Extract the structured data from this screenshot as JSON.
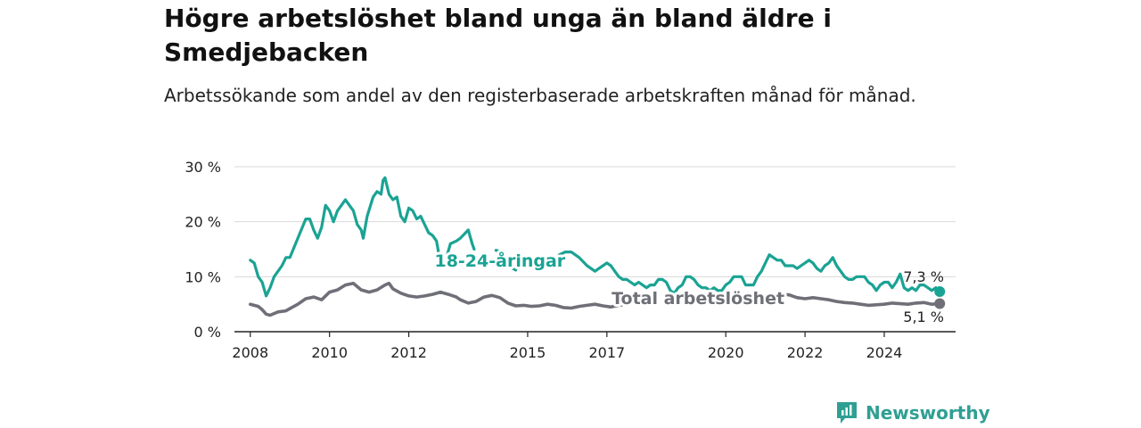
{
  "title": "Högre arbetslöshet bland unga än bland äldre i Smedjebacken",
  "subtitle": "Arbetssökande som andel av den registerbaserade arbetskraften månad för månad.",
  "brand": "Newsworthy",
  "colors": {
    "youth": "#1aa394",
    "total": "#6f6f78",
    "brand": "#2f9f93"
  },
  "chart_data": {
    "type": "line",
    "xlim": [
      2007.6,
      2025.8
    ],
    "ylim": [
      0,
      30
    ],
    "y_ticks": [
      0,
      10,
      20,
      30
    ],
    "y_tick_labels": [
      "0 %",
      "10 %",
      "20 %",
      "30 %"
    ],
    "x_ticks": [
      2008,
      2010,
      2012,
      2015,
      2017,
      2020,
      2022,
      2024
    ],
    "x_tick_labels": [
      "2008",
      "2010",
      "2012",
      "2015",
      "2017",
      "2020",
      "2022",
      "2024"
    ],
    "grid": true,
    "series": [
      {
        "name": "18-24-åringar",
        "key": "youth",
        "end_label": "7,3 %",
        "points": [
          [
            2008.0,
            13.0
          ],
          [
            2008.1,
            12.5
          ],
          [
            2008.2,
            10.0
          ],
          [
            2008.3,
            9.0
          ],
          [
            2008.4,
            6.5
          ],
          [
            2008.5,
            8.0
          ],
          [
            2008.6,
            10.0
          ],
          [
            2008.8,
            12.0
          ],
          [
            2008.9,
            13.5
          ],
          [
            2009.0,
            13.5
          ],
          [
            2009.2,
            17.0
          ],
          [
            2009.4,
            20.5
          ],
          [
            2009.5,
            20.5
          ],
          [
            2009.6,
            18.5
          ],
          [
            2009.7,
            17.0
          ],
          [
            2009.8,
            19.0
          ],
          [
            2009.9,
            23.0
          ],
          [
            2010.0,
            22.0
          ],
          [
            2010.1,
            20.0
          ],
          [
            2010.2,
            22.0
          ],
          [
            2010.4,
            24.0
          ],
          [
            2010.5,
            23.0
          ],
          [
            2010.6,
            22.0
          ],
          [
            2010.7,
            19.5
          ],
          [
            2010.8,
            18.5
          ],
          [
            2010.85,
            17.0
          ],
          [
            2010.95,
            21.0
          ],
          [
            2011.1,
            24.5
          ],
          [
            2011.2,
            25.5
          ],
          [
            2011.3,
            25.0
          ],
          [
            2011.35,
            27.5
          ],
          [
            2011.4,
            28.0
          ],
          [
            2011.5,
            25.0
          ],
          [
            2011.6,
            24.0
          ],
          [
            2011.7,
            24.5
          ],
          [
            2011.8,
            21.0
          ],
          [
            2011.9,
            20.0
          ],
          [
            2012.0,
            22.5
          ],
          [
            2012.1,
            22.0
          ],
          [
            2012.2,
            20.5
          ],
          [
            2012.3,
            21.0
          ],
          [
            2012.4,
            19.5
          ],
          [
            2012.5,
            18.0
          ],
          [
            2012.6,
            17.5
          ],
          [
            2012.7,
            16.5
          ],
          [
            2012.75,
            14.5
          ]
        ],
        "points_2": [
          [
            2012.95,
            13.5
          ],
          [
            2013.05,
            16.0
          ],
          [
            2013.2,
            16.5
          ],
          [
            2013.3,
            17.0
          ],
          [
            2013.5,
            18.5
          ],
          [
            2013.6,
            16.0
          ],
          [
            2013.65,
            15.0
          ]
        ],
        "points_3": [
          [
            2015.2,
            12.5
          ],
          [
            2015.4,
            11.5
          ],
          [
            2015.6,
            12.5
          ],
          [
            2015.8,
            14.0
          ],
          [
            2015.95,
            14.5
          ],
          [
            2016.1,
            14.5
          ],
          [
            2016.3,
            13.5
          ],
          [
            2016.5,
            12.0
          ],
          [
            2016.7,
            11.0
          ],
          [
            2016.8,
            11.5
          ],
          [
            2016.9,
            12.0
          ],
          [
            2017.0,
            12.5
          ],
          [
            2017.1,
            12.0
          ],
          [
            2017.2,
            11.0
          ],
          [
            2017.3,
            10.0
          ],
          [
            2017.4,
            9.5
          ],
          [
            2017.5,
            9.5
          ],
          [
            2017.6,
            9.0
          ],
          [
            2017.7,
            8.5
          ],
          [
            2017.8,
            9.0
          ],
          [
            2017.9,
            8.5
          ],
          [
            2018.0,
            8.0
          ],
          [
            2018.1,
            8.5
          ],
          [
            2018.2,
            8.5
          ],
          [
            2018.3,
            9.5
          ],
          [
            2018.4,
            9.5
          ],
          [
            2018.5,
            9.0
          ],
          [
            2018.6,
            7.5
          ],
          [
            2018.7,
            7.0
          ],
          [
            2018.8,
            8.0
          ],
          [
            2018.9,
            8.5
          ],
          [
            2019.0,
            10.0
          ],
          [
            2019.1,
            10.0
          ],
          [
            2019.2,
            9.5
          ],
          [
            2019.3,
            8.5
          ],
          [
            2019.4,
            8.0
          ],
          [
            2019.5,
            8.0
          ],
          [
            2019.6,
            7.5
          ],
          [
            2019.7,
            8.0
          ],
          [
            2019.8,
            7.5
          ],
          [
            2019.9,
            7.5
          ],
          [
            2020.0,
            8.5
          ],
          [
            2020.1,
            9.0
          ],
          [
            2020.2,
            10.0
          ],
          [
            2020.4,
            10.0
          ],
          [
            2020.5,
            8.5
          ],
          [
            2020.6,
            8.5
          ],
          [
            2020.7,
            8.5
          ],
          [
            2020.8,
            10.0
          ],
          [
            2020.9,
            11.0
          ],
          [
            2021.0,
            12.5
          ],
          [
            2021.1,
            14.0
          ],
          [
            2021.2,
            13.5
          ],
          [
            2021.3,
            13.0
          ],
          [
            2021.4,
            13.0
          ],
          [
            2021.5,
            12.0
          ],
          [
            2021.6,
            12.0
          ],
          [
            2021.7,
            12.0
          ],
          [
            2021.8,
            11.5
          ],
          [
            2021.9,
            12.0
          ],
          [
            2022.0,
            12.5
          ],
          [
            2022.1,
            13.0
          ],
          [
            2022.2,
            12.5
          ],
          [
            2022.3,
            11.5
          ],
          [
            2022.4,
            11.0
          ],
          [
            2022.5,
            12.0
          ],
          [
            2022.6,
            12.5
          ],
          [
            2022.7,
            13.5
          ],
          [
            2022.8,
            12.0
          ],
          [
            2022.9,
            11.0
          ],
          [
            2023.0,
            10.0
          ],
          [
            2023.1,
            9.5
          ],
          [
            2023.2,
            9.5
          ],
          [
            2023.3,
            10.0
          ],
          [
            2023.4,
            10.0
          ],
          [
            2023.5,
            10.0
          ],
          [
            2023.6,
            9.0
          ],
          [
            2023.7,
            8.5
          ],
          [
            2023.8,
            7.5
          ],
          [
            2023.9,
            8.5
          ],
          [
            2024.0,
            9.0
          ],
          [
            2024.1,
            9.0
          ],
          [
            2024.2,
            8.0
          ],
          [
            2024.3,
            9.0
          ],
          [
            2024.4,
            10.5
          ],
          [
            2024.5,
            8.0
          ],
          [
            2024.6,
            7.5
          ],
          [
            2024.7,
            8.0
          ],
          [
            2024.8,
            7.5
          ],
          [
            2024.9,
            8.5
          ],
          [
            2025.0,
            8.5
          ],
          [
            2025.1,
            8.0
          ],
          [
            2025.2,
            7.5
          ],
          [
            2025.3,
            8.0
          ],
          [
            2025.4,
            7.3
          ]
        ],
        "gap_fragments": [
          [
            [
              2014.2,
              14.8
            ],
            [
              2014.35,
              14.5
            ]
          ],
          [
            [
              2014.55,
              11.8
            ],
            [
              2014.7,
              11.2
            ]
          ]
        ]
      },
      {
        "name": "Total arbetslöshet",
        "key": "total",
        "end_label": "5,1 %",
        "points": [
          [
            2008.0,
            5.0
          ],
          [
            2008.2,
            4.6
          ],
          [
            2008.3,
            4.0
          ],
          [
            2008.4,
            3.2
          ],
          [
            2008.5,
            3.0
          ],
          [
            2008.7,
            3.6
          ],
          [
            2008.9,
            3.8
          ],
          [
            2009.0,
            4.2
          ],
          [
            2009.2,
            5.0
          ],
          [
            2009.4,
            6.0
          ],
          [
            2009.6,
            6.3
          ],
          [
            2009.8,
            5.8
          ],
          [
            2010.0,
            7.2
          ],
          [
            2010.2,
            7.6
          ],
          [
            2010.4,
            8.5
          ],
          [
            2010.6,
            8.8
          ],
          [
            2010.8,
            7.6
          ],
          [
            2011.0,
            7.2
          ],
          [
            2011.2,
            7.6
          ],
          [
            2011.4,
            8.5
          ],
          [
            2011.5,
            8.8
          ],
          [
            2011.6,
            7.8
          ],
          [
            2011.8,
            7.0
          ],
          [
            2012.0,
            6.5
          ],
          [
            2012.2,
            6.3
          ],
          [
            2012.4,
            6.5
          ],
          [
            2012.6,
            6.8
          ],
          [
            2012.8,
            7.2
          ],
          [
            2013.0,
            6.8
          ],
          [
            2013.2,
            6.3
          ],
          [
            2013.3,
            5.8
          ],
          [
            2013.5,
            5.2
          ],
          [
            2013.7,
            5.5
          ],
          [
            2013.9,
            6.3
          ],
          [
            2014.1,
            6.6
          ],
          [
            2014.3,
            6.2
          ],
          [
            2014.5,
            5.2
          ],
          [
            2014.7,
            4.7
          ],
          [
            2014.9,
            4.8
          ],
          [
            2015.1,
            4.6
          ],
          [
            2015.3,
            4.7
          ],
          [
            2015.5,
            5.0
          ],
          [
            2015.7,
            4.8
          ],
          [
            2015.9,
            4.4
          ],
          [
            2016.1,
            4.3
          ],
          [
            2016.3,
            4.6
          ],
          [
            2016.5,
            4.8
          ],
          [
            2016.7,
            5.0
          ],
          [
            2016.9,
            4.7
          ],
          [
            2017.1,
            4.5
          ],
          [
            2017.3,
            4.8
          ],
          [
            2017.5,
            5.0
          ]
        ],
        "points_2": [
          [
            2021.2,
            6.5
          ],
          [
            2021.4,
            6.8
          ],
          [
            2021.6,
            6.7
          ],
          [
            2021.8,
            6.2
          ],
          [
            2022.0,
            6.0
          ],
          [
            2022.2,
            6.2
          ],
          [
            2022.4,
            6.0
          ],
          [
            2022.6,
            5.8
          ],
          [
            2022.8,
            5.5
          ],
          [
            2023.0,
            5.3
          ],
          [
            2023.2,
            5.2
          ],
          [
            2023.4,
            5.0
          ],
          [
            2023.6,
            4.8
          ],
          [
            2023.8,
            4.9
          ],
          [
            2024.0,
            5.0
          ],
          [
            2024.2,
            5.2
          ],
          [
            2024.4,
            5.1
          ],
          [
            2024.6,
            5.0
          ],
          [
            2024.8,
            5.2
          ],
          [
            2025.0,
            5.3
          ],
          [
            2025.2,
            5.0
          ],
          [
            2025.4,
            5.1
          ]
        ],
        "points_3": []
      }
    ],
    "inline_labels": [
      {
        "series": "youth",
        "text": "18-24-åringar",
        "at": [
          2014.3,
          11.8
        ]
      },
      {
        "series": "total",
        "text": "Total arbetslöshet",
        "at": [
          2019.3,
          5.0
        ]
      }
    ]
  }
}
